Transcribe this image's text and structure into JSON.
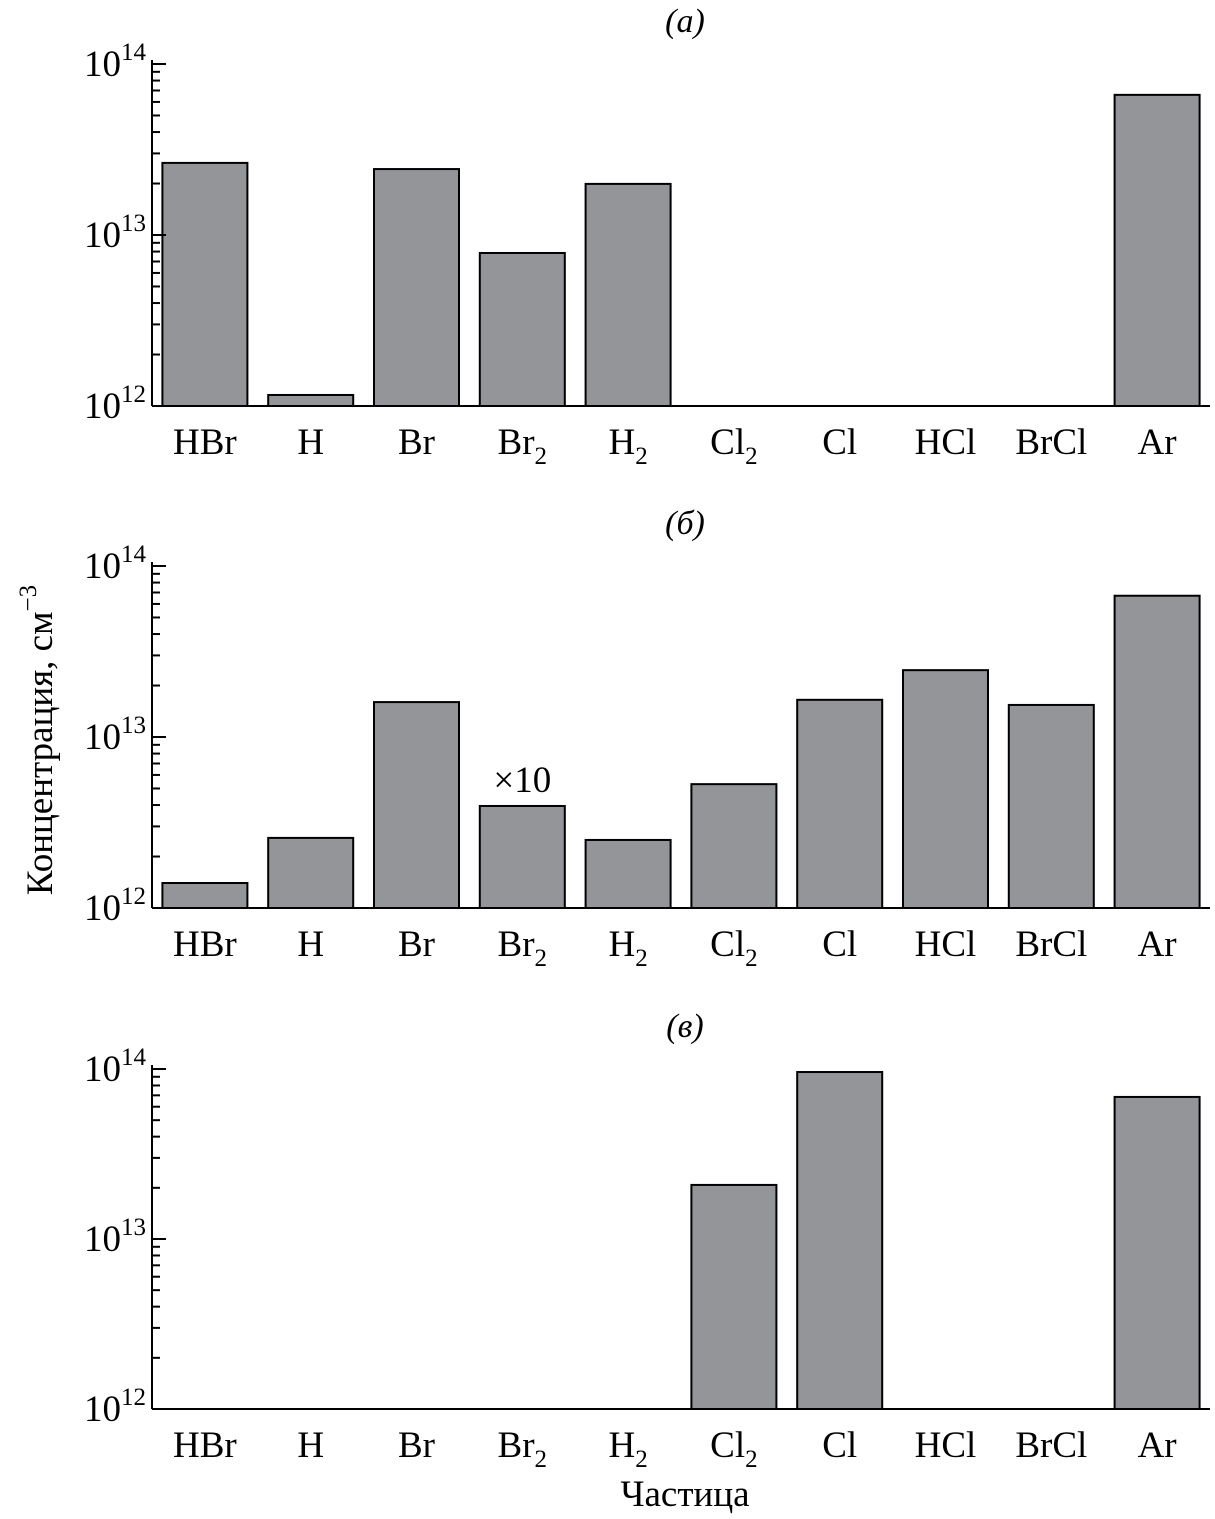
{
  "chart_data": {
    "type": "bar",
    "yscale": "log",
    "ylim": [
      1000000000000.0,
      100000000000000.0
    ],
    "ylabel": "Концентрация, см",
    "ylabel_sup": "−3",
    "xlabel": "Частица",
    "yticks": [
      {
        "base": "10",
        "exp": "12",
        "value": 1000000000000.0
      },
      {
        "base": "10",
        "exp": "13",
        "value": 10000000000000.0
      },
      {
        "base": "10",
        "exp": "14",
        "value": 100000000000000.0
      }
    ],
    "categories": [
      {
        "text": "HBr",
        "sub": ""
      },
      {
        "text": "H",
        "sub": ""
      },
      {
        "text": "Br",
        "sub": ""
      },
      {
        "text": "Br",
        "sub": "2"
      },
      {
        "text": "H",
        "sub": "2"
      },
      {
        "text": "Cl",
        "sub": "2"
      },
      {
        "text": "Cl",
        "sub": ""
      },
      {
        "text": "HCl",
        "sub": ""
      },
      {
        "text": "BrCl",
        "sub": ""
      },
      {
        "text": "Ar",
        "sub": ""
      }
    ],
    "panels": [
      {
        "title": "(а)",
        "values": [
          26400000000000.0,
          1160000000000.0,
          24300000000000.0,
          7850000000000.0,
          19900000000000.0,
          null,
          null,
          null,
          null,
          66000000000000.0
        ],
        "annotations": []
      },
      {
        "title": "(б)",
        "values": [
          1400000000000.0,
          2570000000000.0,
          16000000000000.0,
          3950000000000.0,
          2500000000000.0,
          5300000000000.0,
          16500000000000.0,
          24600000000000.0,
          15400000000000.0,
          67000000000000.0
        ],
        "annotations": [
          {
            "category_index": 3,
            "text": "×10"
          }
        ]
      },
      {
        "title": "(в)",
        "values": [
          null,
          null,
          null,
          null,
          null,
          20800000000000.0,
          96000000000000.0,
          null,
          null,
          68500000000000.0
        ],
        "annotations": []
      }
    ]
  }
}
